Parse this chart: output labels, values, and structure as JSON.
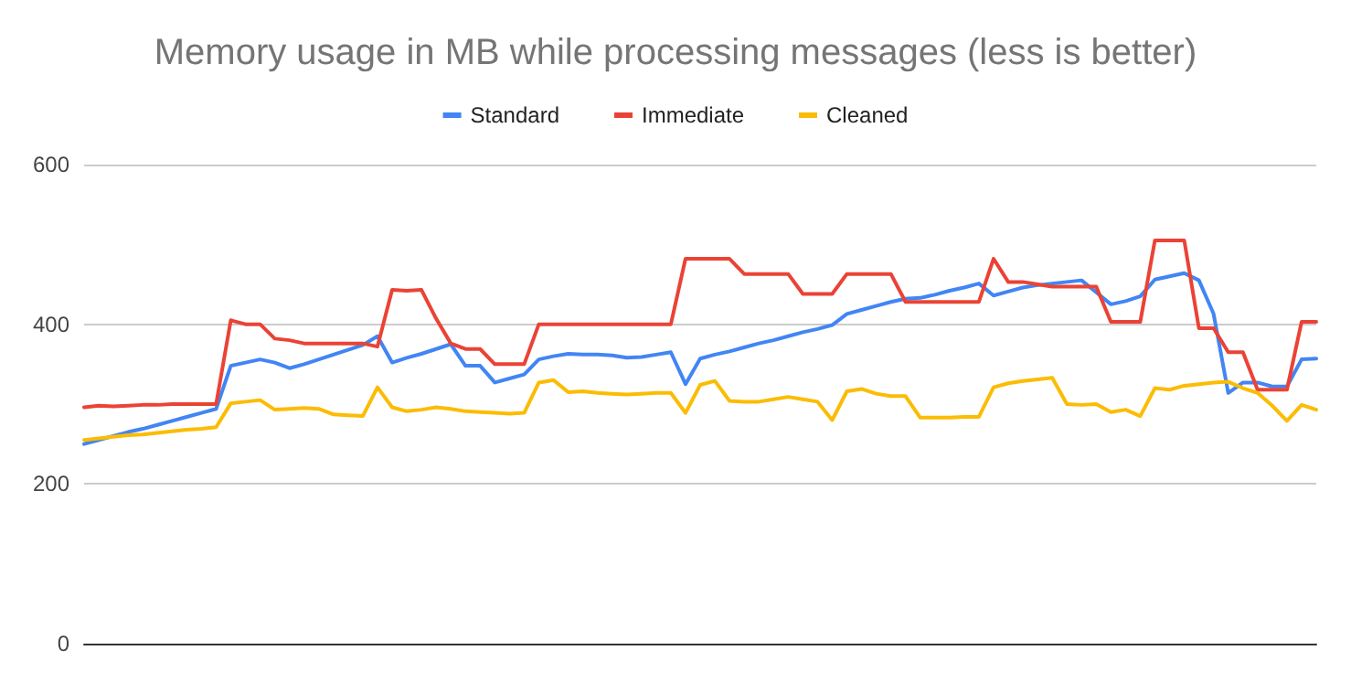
{
  "chart_data": {
    "type": "line",
    "title": "Memory usage in MB while processing messages (less is better)",
    "categories": [
      null,
      null,
      null,
      null,
      null,
      null,
      null,
      null,
      null,
      null,
      null,
      null,
      null,
      null,
      null,
      null,
      null,
      null,
      null,
      null,
      null,
      null,
      null,
      null,
      null,
      null,
      null,
      null,
      null,
      null,
      null,
      null,
      null,
      null,
      null,
      null,
      null,
      null,
      null,
      null,
      null,
      null,
      null,
      null,
      null,
      null,
      null,
      null,
      null,
      null,
      null,
      null,
      null,
      null,
      null,
      null,
      null,
      null,
      null,
      null,
      null,
      null,
      null,
      null,
      null,
      null,
      null,
      null,
      null,
      null,
      null,
      null,
      null,
      null,
      null,
      null,
      null,
      null,
      null,
      null,
      null,
      null,
      null,
      null,
      null
    ],
    "series": [
      {
        "name": "Standard",
        "color": "#4285f4",
        "values": [
          250,
          255,
          260,
          265,
          269,
          274,
          279,
          284,
          289,
          294,
          348,
          352,
          356,
          352,
          345,
          350,
          356,
          362,
          368,
          374,
          385,
          352,
          358,
          363,
          369,
          375,
          348,
          348,
          327,
          332,
          337,
          356,
          360,
          363,
          362,
          362,
          361,
          358,
          359,
          362,
          365,
          325,
          357,
          362,
          366,
          371,
          376,
          380,
          385,
          390,
          394,
          399,
          413,
          418,
          423,
          428,
          432,
          433,
          437,
          442,
          446,
          451,
          436,
          441,
          446,
          449,
          451,
          453,
          455,
          440,
          425,
          429,
          435,
          456,
          460,
          464,
          455,
          413,
          314,
          327,
          327,
          322,
          322,
          356,
          357
        ]
      },
      {
        "name": "Immediate",
        "color": "#ea4335",
        "values": [
          296,
          298,
          297,
          298,
          299,
          299,
          300,
          300,
          300,
          300,
          405,
          400,
          400,
          382,
          380,
          376,
          376,
          376,
          376,
          376,
          372,
          443,
          442,
          443,
          407,
          376,
          369,
          369,
          350,
          350,
          350,
          400,
          400,
          400,
          400,
          400,
          400,
          400,
          400,
          400,
          400,
          482,
          482,
          482,
          482,
          463,
          463,
          463,
          463,
          438,
          438,
          438,
          463,
          463,
          463,
          463,
          428,
          428,
          428,
          428,
          428,
          428,
          482,
          453,
          453,
          450,
          447,
          447,
          447,
          447,
          403,
          403,
          403,
          505,
          505,
          505,
          395,
          395,
          365,
          365,
          318,
          318,
          318,
          403,
          403
        ]
      },
      {
        "name": "Cleaned",
        "color": "#fbbc04",
        "values": [
          255,
          257,
          259,
          261,
          262,
          264,
          266,
          268,
          269,
          271,
          301,
          303,
          305,
          293,
          294,
          295,
          294,
          287,
          286,
          285,
          321,
          296,
          291,
          293,
          296,
          294,
          291,
          290,
          289,
          288,
          289,
          327,
          330,
          315,
          316,
          314,
          313,
          312,
          313,
          314,
          314,
          289,
          324,
          329,
          304,
          303,
          303,
          306,
          309,
          306,
          303,
          280,
          316,
          319,
          313,
          310,
          310,
          283,
          283,
          283,
          284,
          284,
          321,
          326,
          329,
          331,
          333,
          300,
          299,
          300,
          290,
          293,
          285,
          320,
          318,
          323,
          325,
          327,
          328,
          320,
          314,
          298,
          279,
          299,
          293
        ]
      }
    ],
    "ylim": [
      0,
      600
    ],
    "yticks": [
      0,
      200,
      400,
      600
    ],
    "grid": "y",
    "legend": "top",
    "tick_labels": "y",
    "line_style": "solid"
  }
}
